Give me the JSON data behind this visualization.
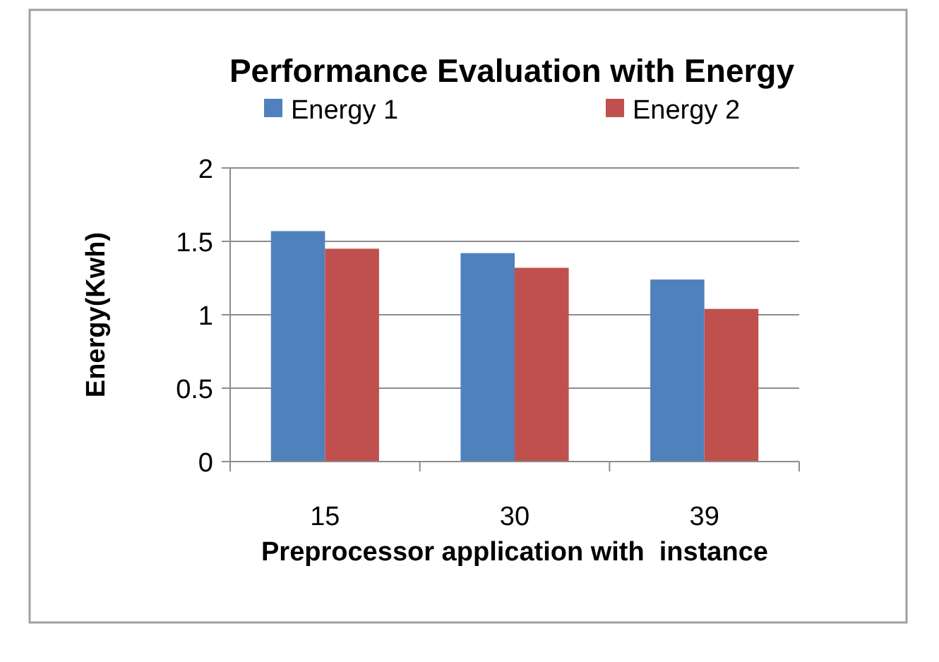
{
  "chart_data": {
    "type": "bar",
    "title": "Performance Evaluation with Energy",
    "xlabel": "Preprocessor application with  instance",
    "ylabel": "Energy(Kwh)",
    "categories": [
      "15",
      "30",
      "39"
    ],
    "series": [
      {
        "name": "Energy 1",
        "color": "#4f81bd",
        "values": [
          1.57,
          1.42,
          1.24
        ]
      },
      {
        "name": "Energy 2",
        "color": "#c0504d",
        "values": [
          1.45,
          1.32,
          1.04
        ]
      }
    ],
    "ylim": [
      0,
      2
    ],
    "yticks": [
      0,
      0.5,
      1,
      1.5,
      2
    ],
    "grid": "y",
    "legend": "top"
  }
}
